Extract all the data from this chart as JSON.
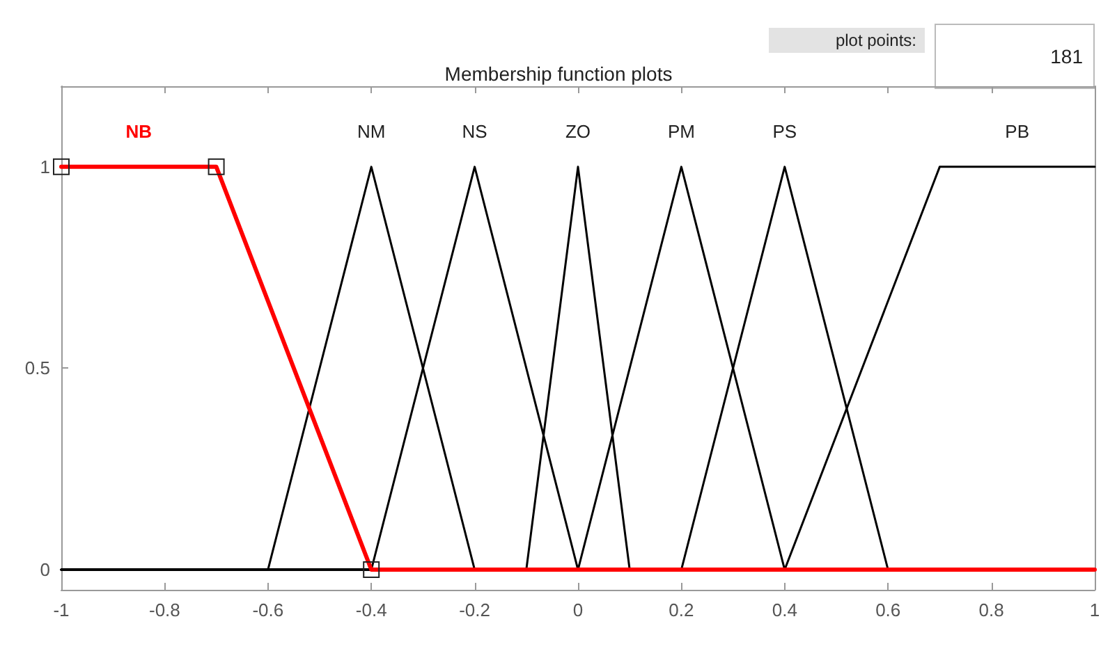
{
  "chart_data": {
    "type": "line",
    "title": "Membership function plots",
    "annotations": [
      "plot points:",
      "181"
    ],
    "xlim": [
      -1,
      1
    ],
    "xticks": [
      -1,
      -0.8,
      -0.6,
      -0.4,
      -0.2,
      0,
      0.2,
      0.4,
      0.6,
      0.8,
      1
    ],
    "ylim": [
      -0.05,
      1.2
    ],
    "yticks": [
      0,
      0.5,
      1
    ],
    "grid": false,
    "legend": false,
    "line_style": "solid",
    "marker": "none",
    "series": [
      {
        "name": "NB",
        "color": "#ff0000",
        "marker": "square",
        "x": [
          -1,
          -0.7,
          -0.4,
          1
        ],
        "values": [
          1,
          1,
          0,
          0
        ]
      },
      {
        "name": "NM",
        "color": "#000000",
        "x": [
          -1,
          -0.6,
          -0.4,
          -0.2,
          1
        ],
        "values": [
          0,
          0,
          1,
          0,
          0
        ]
      },
      {
        "name": "NS",
        "color": "#000000",
        "x": [
          -1,
          -0.4,
          -0.2,
          0,
          1
        ],
        "values": [
          0,
          0,
          1,
          0,
          0
        ]
      },
      {
        "name": "ZO",
        "color": "#000000",
        "x": [
          -1,
          -0.1,
          0,
          0.1,
          1
        ],
        "values": [
          0,
          0,
          1,
          0,
          0
        ]
      },
      {
        "name": "PM",
        "color": "#000000",
        "x": [
          -1,
          0,
          0.2,
          0.4,
          1
        ],
        "values": [
          0,
          0,
          1,
          0,
          0
        ]
      },
      {
        "name": "PS",
        "color": "#000000",
        "x": [
          -1,
          0.2,
          0.4,
          0.6,
          1
        ],
        "values": [
          0,
          0,
          1,
          0,
          0
        ]
      },
      {
        "name": "PB",
        "color": "#000000",
        "x": [
          -1,
          0.4,
          0.7,
          1
        ],
        "values": [
          0,
          0,
          1,
          1
        ]
      }
    ]
  }
}
